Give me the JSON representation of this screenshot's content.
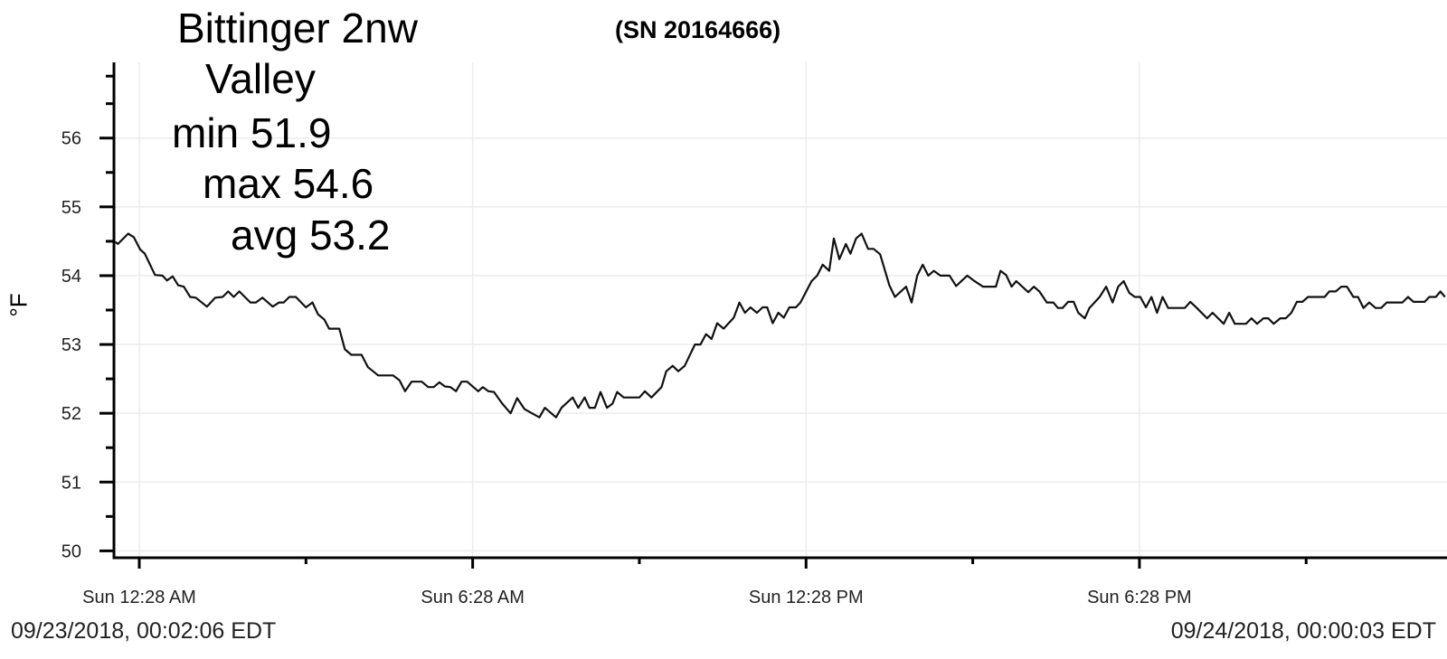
{
  "header": {
    "station": "Bittinger 2nw",
    "location": "Valley",
    "min_label": "min 51.9",
    "max_label": "max 54.6",
    "avg_label": "avg 53.2",
    "serial": "(SN 20164666)"
  },
  "footer": {
    "start_datetime": "09/23/2018, 00:02:06 EDT",
    "end_datetime": "09/24/2018, 00:00:03 EDT"
  },
  "colors": {
    "line": "#111111",
    "grid": "#ececec",
    "axis": "#000000"
  },
  "chart_data": {
    "type": "line",
    "title": "",
    "xlabel": "",
    "ylabel": "°F",
    "ylim": [
      49.9,
      57.1
    ],
    "yticks": [
      50,
      51,
      52,
      53,
      54,
      55,
      56
    ],
    "ytick_labels": [
      "50",
      "51",
      "52",
      "53",
      "54",
      "55",
      "56"
    ],
    "xtick_times": [
      "00:28",
      "06:28",
      "12:28",
      "18:28"
    ],
    "xtick_labels": [
      "Sun 12:28 AM",
      "Sun 6:28 AM",
      "Sun 12:28 PM",
      "Sun 6:28 PM"
    ],
    "xlim": [
      "00:02",
      "24:00"
    ],
    "grid": true,
    "series": [
      {
        "points": [
          [
            "00:02",
            54.49
          ],
          [
            "00:05",
            54.46
          ],
          [
            "00:16",
            54.61
          ],
          [
            "00:22",
            54.56
          ],
          [
            "00:29",
            54.38
          ],
          [
            "00:34",
            54.32
          ],
          [
            "00:45",
            54.01
          ],
          [
            "00:53",
            54.0
          ],
          [
            "00:58",
            53.93
          ],
          [
            "01:04",
            53.99
          ],
          [
            "01:10",
            53.86
          ],
          [
            "01:16",
            53.84
          ],
          [
            "01:23",
            53.69
          ],
          [
            "01:29",
            53.68
          ],
          [
            "01:41",
            53.55
          ],
          [
            "01:50",
            53.68
          ],
          [
            "01:58",
            53.69
          ],
          [
            "02:04",
            53.77
          ],
          [
            "02:10",
            53.69
          ],
          [
            "02:16",
            53.77
          ],
          [
            "02:28",
            53.61
          ],
          [
            "02:34",
            53.61
          ],
          [
            "02:41",
            53.68
          ],
          [
            "02:52",
            53.55
          ],
          [
            "02:59",
            53.61
          ],
          [
            "03:04",
            53.61
          ],
          [
            "03:10",
            53.69
          ],
          [
            "03:17",
            53.69
          ],
          [
            "03:28",
            53.54
          ],
          [
            "03:35",
            53.61
          ],
          [
            "03:41",
            53.44
          ],
          [
            "03:48",
            53.36
          ],
          [
            "03:53",
            53.23
          ],
          [
            "04:04",
            53.23
          ],
          [
            "04:10",
            52.93
          ],
          [
            "04:17",
            52.85
          ],
          [
            "04:28",
            52.85
          ],
          [
            "04:35",
            52.67
          ],
          [
            "04:46",
            52.55
          ],
          [
            "05:02",
            52.55
          ],
          [
            "05:09",
            52.48
          ],
          [
            "05:15",
            52.32
          ],
          [
            "05:22",
            52.46
          ],
          [
            "05:33",
            52.46
          ],
          [
            "05:40",
            52.38
          ],
          [
            "05:46",
            52.38
          ],
          [
            "05:52",
            52.45
          ],
          [
            "05:58",
            52.39
          ],
          [
            "06:04",
            52.38
          ],
          [
            "06:10",
            52.32
          ],
          [
            "06:16",
            52.46
          ],
          [
            "06:22",
            52.46
          ],
          [
            "06:34",
            52.32
          ],
          [
            "06:39",
            52.38
          ],
          [
            "06:45",
            52.32
          ],
          [
            "06:51",
            52.31
          ],
          [
            "07:00",
            52.14
          ],
          [
            "07:09",
            52.0
          ],
          [
            "07:16",
            52.22
          ],
          [
            "07:24",
            52.06
          ],
          [
            "07:32",
            52.0
          ],
          [
            "07:40",
            51.94
          ],
          [
            "07:46",
            52.08
          ],
          [
            "07:58",
            51.94
          ],
          [
            "08:04",
            52.08
          ],
          [
            "08:16",
            52.23
          ],
          [
            "08:22",
            52.08
          ],
          [
            "08:29",
            52.23
          ],
          [
            "08:34",
            52.08
          ],
          [
            "08:40",
            52.08
          ],
          [
            "08:46",
            52.31
          ],
          [
            "08:53",
            52.08
          ],
          [
            "08:59",
            52.14
          ],
          [
            "09:04",
            52.31
          ],
          [
            "09:11",
            52.23
          ],
          [
            "09:28",
            52.23
          ],
          [
            "09:34",
            52.32
          ],
          [
            "09:41",
            52.23
          ],
          [
            "09:52",
            52.38
          ],
          [
            "09:57",
            52.61
          ],
          [
            "10:04",
            52.69
          ],
          [
            "10:10",
            52.61
          ],
          [
            "10:17",
            52.69
          ],
          [
            "10:28",
            53.0
          ],
          [
            "10:34",
            53.0
          ],
          [
            "10:40",
            53.15
          ],
          [
            "10:46",
            53.08
          ],
          [
            "10:52",
            53.31
          ],
          [
            "10:59",
            53.23
          ],
          [
            "11:10",
            53.39
          ],
          [
            "11:16",
            53.61
          ],
          [
            "11:22",
            53.46
          ],
          [
            "11:28",
            53.54
          ],
          [
            "11:35",
            53.46
          ],
          [
            "11:41",
            53.54
          ],
          [
            "11:46",
            53.54
          ],
          [
            "11:52",
            53.31
          ],
          [
            "11:58",
            53.46
          ],
          [
            "12:04",
            53.39
          ],
          [
            "12:10",
            53.54
          ],
          [
            "12:17",
            53.54
          ],
          [
            "12:22",
            53.61
          ],
          [
            "12:34",
            53.92
          ],
          [
            "12:40",
            54.0
          ],
          [
            "12:46",
            54.16
          ],
          [
            "12:53",
            54.07
          ],
          [
            "12:58",
            54.54
          ],
          [
            "13:04",
            54.24
          ],
          [
            "13:11",
            54.46
          ],
          [
            "13:16",
            54.32
          ],
          [
            "13:22",
            54.54
          ],
          [
            "13:28",
            54.61
          ],
          [
            "13:35",
            54.39
          ],
          [
            "13:41",
            54.39
          ],
          [
            "13:48",
            54.31
          ],
          [
            "13:58",
            53.86
          ],
          [
            "14:04",
            53.69
          ],
          [
            "14:16",
            53.84
          ],
          [
            "14:22",
            53.61
          ],
          [
            "14:28",
            54.0
          ],
          [
            "14:34",
            54.16
          ],
          [
            "14:40",
            54.0
          ],
          [
            "14:46",
            54.07
          ],
          [
            "14:53",
            54.0
          ],
          [
            "15:03",
            54.0
          ],
          [
            "15:10",
            53.85
          ],
          [
            "15:22",
            54.0
          ],
          [
            "15:29",
            53.93
          ],
          [
            "15:39",
            53.84
          ],
          [
            "15:53",
            53.84
          ],
          [
            "15:58",
            54.07
          ],
          [
            "16:04",
            54.01
          ],
          [
            "16:10",
            53.84
          ],
          [
            "16:15",
            53.92
          ],
          [
            "16:28",
            53.76
          ],
          [
            "16:34",
            53.84
          ],
          [
            "16:40",
            53.77
          ],
          [
            "16:48",
            53.61
          ],
          [
            "16:55",
            53.61
          ],
          [
            "17:00",
            53.53
          ],
          [
            "17:05",
            53.53
          ],
          [
            "17:11",
            53.62
          ],
          [
            "17:17",
            53.62
          ],
          [
            "17:22",
            53.46
          ],
          [
            "17:29",
            53.38
          ],
          [
            "17:34",
            53.53
          ],
          [
            "17:45",
            53.69
          ],
          [
            "17:52",
            53.84
          ],
          [
            "17:59",
            53.61
          ],
          [
            "18:05",
            53.84
          ],
          [
            "18:11",
            53.92
          ],
          [
            "18:17",
            53.75
          ],
          [
            "18:23",
            53.69
          ],
          [
            "18:29",
            53.69
          ],
          [
            "18:35",
            53.54
          ],
          [
            "18:41",
            53.69
          ],
          [
            "18:47",
            53.46
          ],
          [
            "18:53",
            53.69
          ],
          [
            "18:59",
            53.53
          ],
          [
            "19:17",
            53.53
          ],
          [
            "19:23",
            53.62
          ],
          [
            "19:30",
            53.53
          ],
          [
            "19:41",
            53.38
          ],
          [
            "19:47",
            53.46
          ],
          [
            "19:59",
            53.3
          ],
          [
            "20:05",
            53.46
          ],
          [
            "20:11",
            53.3
          ],
          [
            "20:23",
            53.3
          ],
          [
            "20:29",
            53.38
          ],
          [
            "20:35",
            53.3
          ],
          [
            "20:42",
            53.38
          ],
          [
            "20:47",
            53.38
          ],
          [
            "20:53",
            53.3
          ],
          [
            "21:00",
            53.38
          ],
          [
            "21:06",
            53.38
          ],
          [
            "21:12",
            53.46
          ],
          [
            "21:18",
            53.62
          ],
          [
            "21:24",
            53.62
          ],
          [
            "21:30",
            53.69
          ],
          [
            "21:48",
            53.69
          ],
          [
            "21:53",
            53.77
          ],
          [
            "22:00",
            53.77
          ],
          [
            "22:06",
            53.84
          ],
          [
            "22:12",
            53.84
          ],
          [
            "22:19",
            53.69
          ],
          [
            "22:24",
            53.69
          ],
          [
            "22:30",
            53.53
          ],
          [
            "22:36",
            53.61
          ],
          [
            "22:43",
            53.53
          ],
          [
            "22:49",
            53.53
          ],
          [
            "22:55",
            53.61
          ],
          [
            "23:12",
            53.61
          ],
          [
            "23:18",
            53.69
          ],
          [
            "23:24",
            53.62
          ],
          [
            "23:36",
            53.62
          ],
          [
            "23:41",
            53.69
          ],
          [
            "23:48",
            53.69
          ],
          [
            "23:53",
            53.77
          ],
          [
            "23:58",
            53.69
          ]
        ]
      }
    ]
  }
}
